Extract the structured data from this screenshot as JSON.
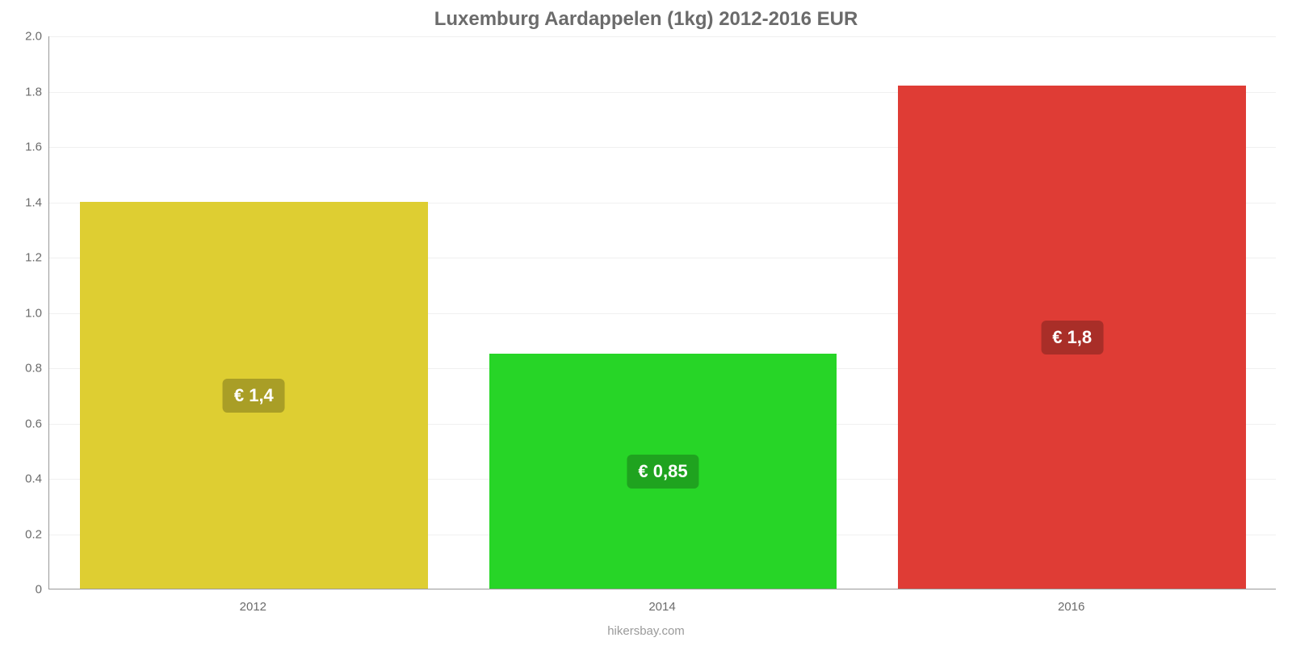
{
  "chart": {
    "type": "bar",
    "title": "Luxemburg Aardappelen (1kg) 2012-2016 EUR",
    "title_fontsize": 24,
    "title_color": "#6b6b6b",
    "footer": "hikersbay.com",
    "footer_fontsize": 15,
    "footer_color": "#9a9a9a",
    "background_color": "#ffffff",
    "grid_color": "#f0f0f0",
    "axis_color": "#999999",
    "tick_label_color": "#6b6b6b",
    "tick_fontsize": 15,
    "ylim": [
      0,
      2.0
    ],
    "ytick_step": 0.2,
    "yticks": [
      "0",
      "0.2",
      "0.4",
      "0.6",
      "0.8",
      "1.0",
      "1.2",
      "1.4",
      "1.6",
      "1.8",
      "2.0"
    ],
    "categories": [
      "2012",
      "2014",
      "2016"
    ],
    "values": [
      1.4,
      0.85,
      1.82
    ],
    "bar_colors": [
      "#dece32",
      "#27d527",
      "#df3c35"
    ],
    "bar_labels": [
      "€ 1,4",
      "€ 0,85",
      "€ 1,8"
    ],
    "bar_label_bg_colors": [
      "#a99e26",
      "#1fa31f",
      "#a92e28"
    ],
    "bar_label_text_color": "#ffffff",
    "bar_label_fontsize": 22,
    "bar_width_ratio": 0.85
  }
}
